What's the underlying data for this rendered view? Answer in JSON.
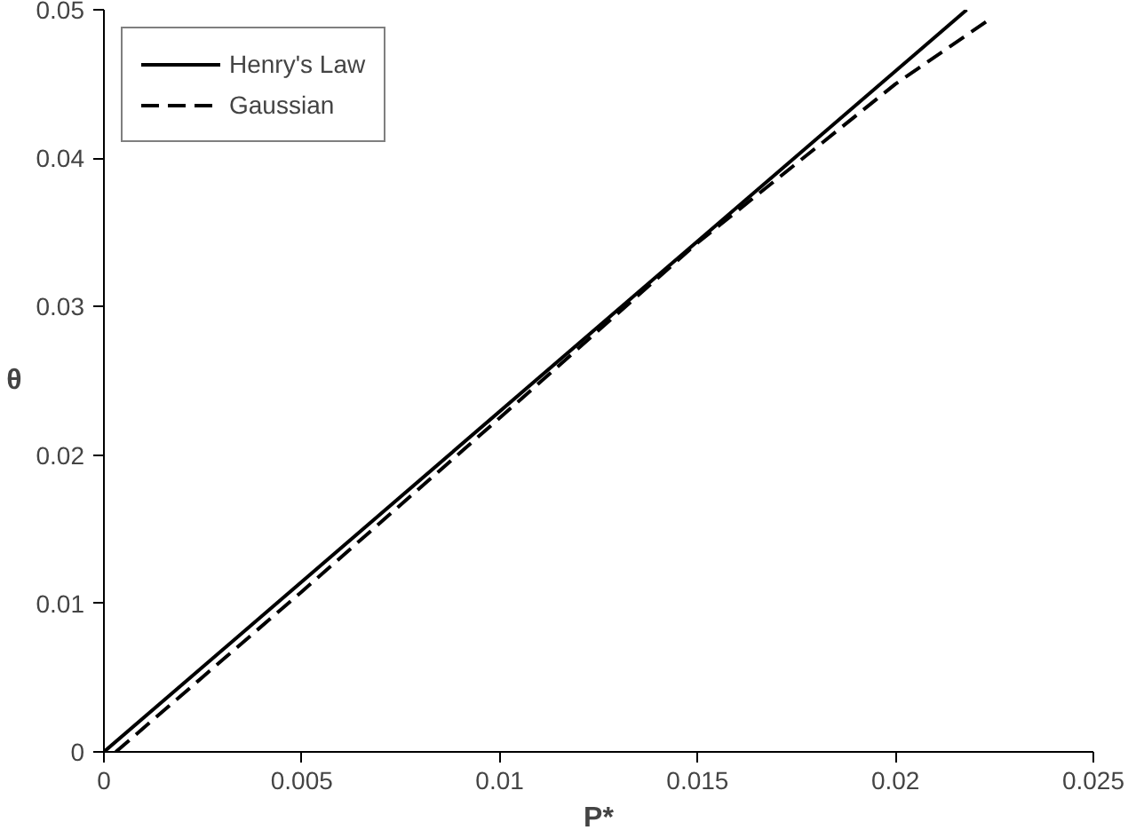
{
  "chart_data": {
    "type": "line",
    "xlabel": "P*",
    "ylabel": "θ",
    "xlim": [
      0,
      0.025
    ],
    "ylim": [
      0,
      0.05
    ],
    "xticks": [
      0,
      0.005,
      0.01,
      0.015,
      0.02,
      0.025
    ],
    "yticks": [
      0,
      0.01,
      0.02,
      0.03,
      0.04,
      0.05
    ],
    "grid": false,
    "legend": "top left",
    "marker": "none",
    "series": [
      {
        "name": "Henry's Law",
        "color": "#000000",
        "line_style": "solid",
        "x": [
          0,
          0.0218
        ],
        "values": [
          0,
          0.05
        ]
      },
      {
        "name": "Gaussian",
        "color": "#000000",
        "line_style": "dashed",
        "x": [
          0.0003,
          0.005,
          0.01,
          0.015,
          0.02,
          0.0224
        ],
        "values": [
          0,
          0.0108,
          0.0225,
          0.0343,
          0.045,
          0.0494
        ]
      }
    ]
  }
}
